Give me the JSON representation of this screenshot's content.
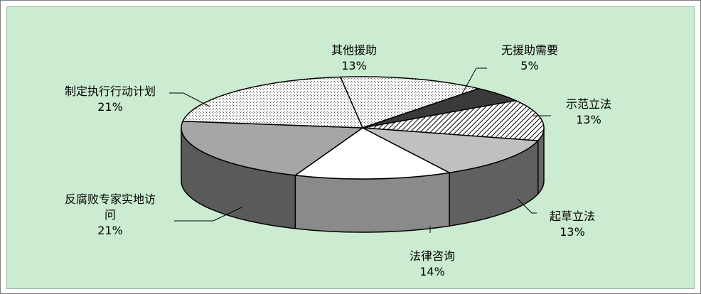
{
  "colors": {
    "background": "#ccecd1",
    "outline": "#000000"
  },
  "chart_data": {
    "type": "pie",
    "title": "",
    "legend": "none",
    "slices": [
      {
        "label": "其他援助",
        "percent_label": "13%",
        "value": 13,
        "fill": "pattern-dots-white",
        "side": "#ffffff"
      },
      {
        "label": "无援助需要",
        "percent_label": "5%",
        "value": 5,
        "fill": "#3a3a3a",
        "side": "#2a2a2a"
      },
      {
        "label": "示范立法",
        "percent_label": "13%",
        "value": 13,
        "fill": "pattern-diagonal-hatch",
        "side": "#666666"
      },
      {
        "label": "起草立法",
        "percent_label": "13%",
        "value": 13,
        "fill": "#c0c0c0",
        "side": "#606060"
      },
      {
        "label": "法律咨询",
        "percent_label": "14%",
        "value": 14,
        "fill": "#ffffff",
        "side": "#8a8a8a"
      },
      {
        "label": "反腐败专家实地访问",
        "label_lines": [
          "反腐败专家实地访",
          "问"
        ],
        "percent_label": "21%",
        "value": 21,
        "fill": "#a6a6a6",
        "side": "#5a5a5a"
      },
      {
        "label": "制定执行行动计划",
        "percent_label": "21%",
        "value": 21,
        "fill": "pattern-dots-white",
        "side": "#5a5a5a"
      }
    ]
  }
}
